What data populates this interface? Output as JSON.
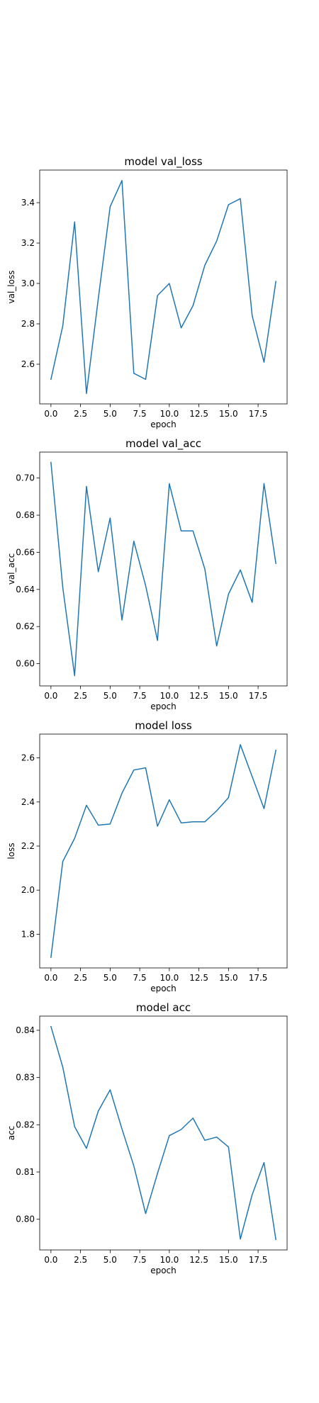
{
  "line_color": "#1f77b4",
  "chart_data": [
    {
      "type": "line",
      "title": "model val_loss",
      "xlabel": "epoch",
      "ylabel": "val_loss",
      "x": [
        0,
        1,
        2,
        3,
        4,
        5,
        6,
        7,
        8,
        9,
        10,
        11,
        12,
        13,
        14,
        15,
        16,
        17,
        18,
        19
      ],
      "series": [
        {
          "values": [
            2.525,
            2.79,
            3.305,
            2.455,
            2.925,
            3.38,
            3.51,
            2.555,
            2.525,
            2.94,
            3.0,
            2.78,
            2.89,
            3.09,
            3.21,
            3.39,
            3.42,
            2.84,
            2.61,
            3.01
          ]
        }
      ],
      "xlim": [
        -0.95,
        19.95
      ],
      "ylim": [
        2.4035,
        3.5615
      ],
      "xticks": [
        0.0,
        2.5,
        5.0,
        7.5,
        10.0,
        12.5,
        15.0,
        17.5
      ],
      "xtick_labels": [
        "0.0",
        "2.5",
        "5.0",
        "7.5",
        "10.0",
        "12.5",
        "15.0",
        "17.5"
      ],
      "yticks": [
        2.6,
        2.8,
        3.0,
        3.2,
        3.4
      ],
      "ytick_labels": [
        "2.6",
        "2.8",
        "3.0",
        "3.2",
        "3.4"
      ],
      "grid": false
    },
    {
      "type": "line",
      "title": "model val_acc",
      "xlabel": "epoch",
      "ylabel": "val_acc",
      "x": [
        0,
        1,
        2,
        3,
        4,
        5,
        6,
        7,
        8,
        9,
        10,
        11,
        12,
        13,
        14,
        15,
        16,
        17,
        18,
        19
      ],
      "series": [
        {
          "values": [
            0.7085,
            0.641,
            0.5935,
            0.6955,
            0.6495,
            0.6785,
            0.6235,
            0.666,
            0.642,
            0.6125,
            0.697,
            0.6715,
            0.6715,
            0.651,
            0.6095,
            0.6375,
            0.6505,
            0.633,
            0.697,
            0.654
          ]
        }
      ],
      "xlim": [
        -0.95,
        19.95
      ],
      "ylim": [
        0.588,
        0.714
      ],
      "xticks": [
        0.0,
        2.5,
        5.0,
        7.5,
        10.0,
        12.5,
        15.0,
        17.5
      ],
      "xtick_labels": [
        "0.0",
        "2.5",
        "5.0",
        "7.5",
        "10.0",
        "12.5",
        "15.0",
        "17.5"
      ],
      "yticks": [
        0.6,
        0.62,
        0.64,
        0.66,
        0.68,
        0.7
      ],
      "ytick_labels": [
        "0.60",
        "0.62",
        "0.64",
        "0.66",
        "0.68",
        "0.70"
      ],
      "grid": false
    },
    {
      "type": "line",
      "title": "model loss",
      "xlabel": "epoch",
      "ylabel": "loss",
      "x": [
        0,
        1,
        2,
        3,
        4,
        5,
        6,
        7,
        8,
        9,
        10,
        11,
        12,
        13,
        14,
        15,
        16,
        17,
        18,
        19
      ],
      "series": [
        {
          "values": [
            1.695,
            2.13,
            2.235,
            2.385,
            2.295,
            2.3,
            2.44,
            2.545,
            2.555,
            2.29,
            2.41,
            2.305,
            2.31,
            2.31,
            2.36,
            2.42,
            2.66,
            2.515,
            2.37,
            2.635
          ]
        }
      ],
      "xlim": [
        -0.95,
        19.95
      ],
      "ylim": [
        1.647,
        2.708
      ],
      "xticks": [
        0.0,
        2.5,
        5.0,
        7.5,
        10.0,
        12.5,
        15.0,
        17.5
      ],
      "xtick_labels": [
        "0.0",
        "2.5",
        "5.0",
        "7.5",
        "10.0",
        "12.5",
        "15.0",
        "17.5"
      ],
      "yticks": [
        1.8,
        2.0,
        2.2,
        2.4,
        2.6
      ],
      "ytick_labels": [
        "1.8",
        "2.0",
        "2.2",
        "2.4",
        "2.6"
      ],
      "grid": false
    },
    {
      "type": "line",
      "title": "model acc",
      "xlabel": "epoch",
      "ylabel": "acc",
      "x": [
        0,
        1,
        2,
        3,
        4,
        5,
        6,
        7,
        8,
        9,
        10,
        11,
        12,
        13,
        14,
        15,
        16,
        17,
        18,
        19
      ],
      "series": [
        {
          "values": [
            0.8408,
            0.8322,
            0.8196,
            0.815,
            0.8229,
            0.8274,
            0.8191,
            0.8113,
            0.8012,
            0.8097,
            0.8177,
            0.819,
            0.8214,
            0.8167,
            0.8174,
            0.8153,
            0.7958,
            0.8052,
            0.812,
            0.7957
          ]
        }
      ],
      "xlim": [
        -0.95,
        19.95
      ],
      "ylim": [
        0.7935,
        0.843
      ],
      "xticks": [
        0.0,
        2.5,
        5.0,
        7.5,
        10.0,
        12.5,
        15.0,
        17.5
      ],
      "xtick_labels": [
        "0.0",
        "2.5",
        "5.0",
        "7.5",
        "10.0",
        "12.5",
        "15.0",
        "17.5"
      ],
      "yticks": [
        0.8,
        0.81,
        0.82,
        0.83,
        0.84
      ],
      "ytick_labels": [
        "0.80",
        "0.81",
        "0.82",
        "0.83",
        "0.84"
      ],
      "grid": false
    }
  ]
}
